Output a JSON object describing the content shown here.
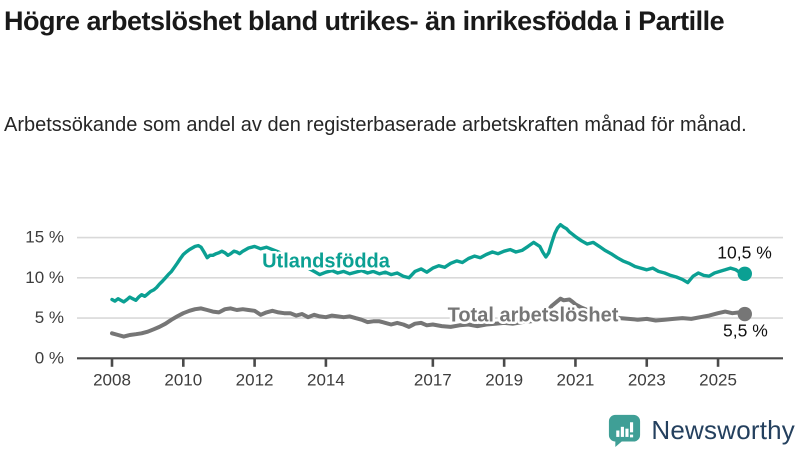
{
  "header": {
    "title": "Högre arbetslöshet bland utrikes- än inrikesfödda i Partille",
    "subtitle": "Arbetssökande som andel av den registerbaserade arbetskraften månad för månad."
  },
  "footer": {
    "brand": "Newsworthy",
    "logo_icon": "bar-chart-speech-bubble-icon",
    "brand_color": "#24405e",
    "icon_color": "#3f9f96"
  },
  "chart_data": {
    "type": "line",
    "unit": "%",
    "grid": true,
    "x_axis": {
      "ticks": [
        2008,
        2010,
        2012,
        2014,
        2017,
        2019,
        2021,
        2023,
        2025
      ],
      "tick_labels": [
        "2008",
        "2010",
        "2012",
        "2014",
        "2017",
        "2019",
        "2021",
        "2023",
        "2025"
      ],
      "range": [
        2007.0,
        2026.8
      ]
    },
    "y_axis": {
      "ticks": [
        0,
        5,
        10,
        15
      ],
      "tick_labels": [
        "0 %",
        "5 %",
        "10 %",
        "15 %"
      ],
      "gridlines": [
        5,
        10,
        15
      ],
      "range": [
        0,
        17.5
      ]
    },
    "colors": {
      "grid": "#d9d9d9",
      "axis": "#4a4a4a",
      "tick_text": "#3d3d3d",
      "value_text": "#111111"
    },
    "series": [
      {
        "name": "Utlandsfödda",
        "color": "#0ba093",
        "end_label": "10,5 %",
        "end_value": 10.5,
        "points": [
          [
            2008.0,
            7.3
          ],
          [
            2008.08,
            7.1
          ],
          [
            2008.17,
            7.4
          ],
          [
            2008.25,
            7.2
          ],
          [
            2008.33,
            7.0
          ],
          [
            2008.42,
            7.3
          ],
          [
            2008.5,
            7.6
          ],
          [
            2008.58,
            7.4
          ],
          [
            2008.67,
            7.2
          ],
          [
            2008.75,
            7.6
          ],
          [
            2008.83,
            7.9
          ],
          [
            2008.92,
            7.7
          ],
          [
            2009.0,
            8.0
          ],
          [
            2009.08,
            8.3
          ],
          [
            2009.17,
            8.5
          ],
          [
            2009.25,
            8.8
          ],
          [
            2009.33,
            9.2
          ],
          [
            2009.42,
            9.6
          ],
          [
            2009.5,
            10.0
          ],
          [
            2009.58,
            10.4
          ],
          [
            2009.67,
            10.8
          ],
          [
            2009.75,
            11.3
          ],
          [
            2009.83,
            11.8
          ],
          [
            2009.92,
            12.4
          ],
          [
            2010.0,
            12.9
          ],
          [
            2010.08,
            13.2
          ],
          [
            2010.17,
            13.5
          ],
          [
            2010.25,
            13.7
          ],
          [
            2010.33,
            13.9
          ],
          [
            2010.42,
            14.0
          ],
          [
            2010.5,
            13.8
          ],
          [
            2010.58,
            13.2
          ],
          [
            2010.67,
            12.5
          ],
          [
            2010.75,
            12.8
          ],
          [
            2010.83,
            12.8
          ],
          [
            2010.92,
            13.0
          ],
          [
            2011.0,
            13.1
          ],
          [
            2011.08,
            13.3
          ],
          [
            2011.17,
            13.1
          ],
          [
            2011.25,
            12.8
          ],
          [
            2011.33,
            13.0
          ],
          [
            2011.42,
            13.3
          ],
          [
            2011.5,
            13.2
          ],
          [
            2011.58,
            13.0
          ],
          [
            2011.67,
            13.3
          ],
          [
            2011.75,
            13.5
          ],
          [
            2011.83,
            13.7
          ],
          [
            2011.92,
            13.8
          ],
          [
            2012.0,
            13.9
          ],
          [
            2012.17,
            13.6
          ],
          [
            2012.33,
            13.8
          ],
          [
            2012.5,
            13.5
          ],
          [
            2012.67,
            13.2
          ],
          [
            2012.83,
            12.8
          ],
          [
            2013.0,
            12.4
          ],
          [
            2013.25,
            11.8
          ],
          [
            2013.5,
            11.2
          ],
          [
            2013.67,
            10.8
          ],
          [
            2013.83,
            10.4
          ],
          [
            2014.0,
            10.7
          ],
          [
            2014.17,
            10.9
          ],
          [
            2014.33,
            10.6
          ],
          [
            2014.5,
            10.8
          ],
          [
            2014.67,
            10.5
          ],
          [
            2014.83,
            10.7
          ],
          [
            2015.0,
            10.9
          ],
          [
            2015.17,
            10.6
          ],
          [
            2015.33,
            10.8
          ],
          [
            2015.5,
            10.5
          ],
          [
            2015.67,
            10.7
          ],
          [
            2015.83,
            10.4
          ],
          [
            2016.0,
            10.6
          ],
          [
            2016.17,
            10.2
          ],
          [
            2016.33,
            10.0
          ],
          [
            2016.5,
            10.8
          ],
          [
            2016.67,
            11.1
          ],
          [
            2016.83,
            10.7
          ],
          [
            2017.0,
            11.2
          ],
          [
            2017.17,
            11.5
          ],
          [
            2017.33,
            11.3
          ],
          [
            2017.5,
            11.8
          ],
          [
            2017.67,
            12.1
          ],
          [
            2017.83,
            11.9
          ],
          [
            2018.0,
            12.4
          ],
          [
            2018.17,
            12.7
          ],
          [
            2018.33,
            12.5
          ],
          [
            2018.5,
            12.9
          ],
          [
            2018.67,
            13.2
          ],
          [
            2018.83,
            13.0
          ],
          [
            2019.0,
            13.3
          ],
          [
            2019.17,
            13.5
          ],
          [
            2019.33,
            13.2
          ],
          [
            2019.5,
            13.4
          ],
          [
            2019.67,
            13.9
          ],
          [
            2019.83,
            14.4
          ],
          [
            2020.0,
            13.9
          ],
          [
            2020.08,
            13.2
          ],
          [
            2020.17,
            12.6
          ],
          [
            2020.25,
            13.1
          ],
          [
            2020.33,
            14.3
          ],
          [
            2020.42,
            15.5
          ],
          [
            2020.5,
            16.2
          ],
          [
            2020.58,
            16.6
          ],
          [
            2020.67,
            16.3
          ],
          [
            2020.75,
            16.1
          ],
          [
            2020.83,
            15.7
          ],
          [
            2020.92,
            15.4
          ],
          [
            2021.0,
            15.1
          ],
          [
            2021.17,
            14.6
          ],
          [
            2021.33,
            14.2
          ],
          [
            2021.5,
            14.4
          ],
          [
            2021.67,
            13.9
          ],
          [
            2021.83,
            13.4
          ],
          [
            2022.0,
            13.0
          ],
          [
            2022.17,
            12.5
          ],
          [
            2022.33,
            12.1
          ],
          [
            2022.5,
            11.8
          ],
          [
            2022.67,
            11.4
          ],
          [
            2022.83,
            11.2
          ],
          [
            2023.0,
            11.0
          ],
          [
            2023.17,
            11.2
          ],
          [
            2023.33,
            10.8
          ],
          [
            2023.5,
            10.6
          ],
          [
            2023.67,
            10.3
          ],
          [
            2023.83,
            10.1
          ],
          [
            2024.0,
            9.8
          ],
          [
            2024.15,
            9.4
          ],
          [
            2024.3,
            10.2
          ],
          [
            2024.45,
            10.6
          ],
          [
            2024.6,
            10.3
          ],
          [
            2024.75,
            10.2
          ],
          [
            2024.9,
            10.6
          ],
          [
            2025.05,
            10.8
          ],
          [
            2025.2,
            11.0
          ],
          [
            2025.35,
            11.2
          ],
          [
            2025.5,
            11.0
          ],
          [
            2025.6,
            10.7
          ],
          [
            2025.75,
            10.5
          ]
        ]
      },
      {
        "name": "Total arbetslöshet",
        "color": "#767676",
        "end_label": "5,5 %",
        "end_value": 5.5,
        "points": [
          [
            2008.0,
            3.1
          ],
          [
            2008.17,
            2.9
          ],
          [
            2008.33,
            2.7
          ],
          [
            2008.5,
            2.9
          ],
          [
            2008.67,
            3.0
          ],
          [
            2008.83,
            3.1
          ],
          [
            2009.0,
            3.3
          ],
          [
            2009.17,
            3.6
          ],
          [
            2009.33,
            3.9
          ],
          [
            2009.5,
            4.3
          ],
          [
            2009.67,
            4.8
          ],
          [
            2009.83,
            5.2
          ],
          [
            2010.0,
            5.6
          ],
          [
            2010.17,
            5.9
          ],
          [
            2010.33,
            6.1
          ],
          [
            2010.5,
            6.2
          ],
          [
            2010.67,
            6.0
          ],
          [
            2010.83,
            5.8
          ],
          [
            2011.0,
            5.7
          ],
          [
            2011.17,
            6.1
          ],
          [
            2011.33,
            6.2
          ],
          [
            2011.5,
            6.0
          ],
          [
            2011.67,
            6.1
          ],
          [
            2011.83,
            6.0
          ],
          [
            2012.0,
            5.9
          ],
          [
            2012.17,
            5.4
          ],
          [
            2012.33,
            5.7
          ],
          [
            2012.5,
            5.9
          ],
          [
            2012.67,
            5.7
          ],
          [
            2012.83,
            5.6
          ],
          [
            2013.0,
            5.6
          ],
          [
            2013.17,
            5.3
          ],
          [
            2013.33,
            5.5
          ],
          [
            2013.5,
            5.1
          ],
          [
            2013.67,
            5.4
          ],
          [
            2013.83,
            5.2
          ],
          [
            2014.0,
            5.1
          ],
          [
            2014.17,
            5.3
          ],
          [
            2014.33,
            5.2
          ],
          [
            2014.5,
            5.1
          ],
          [
            2014.67,
            5.2
          ],
          [
            2014.83,
            5.0
          ],
          [
            2015.0,
            4.8
          ],
          [
            2015.17,
            4.5
          ],
          [
            2015.33,
            4.6
          ],
          [
            2015.5,
            4.6
          ],
          [
            2015.67,
            4.4
          ],
          [
            2015.83,
            4.2
          ],
          [
            2016.0,
            4.4
          ],
          [
            2016.17,
            4.2
          ],
          [
            2016.33,
            3.9
          ],
          [
            2016.5,
            4.3
          ],
          [
            2016.67,
            4.4
          ],
          [
            2016.83,
            4.1
          ],
          [
            2017.0,
            4.2
          ],
          [
            2017.25,
            4.0
          ],
          [
            2017.5,
            3.9
          ],
          [
            2017.75,
            4.1
          ],
          [
            2018.0,
            4.2
          ],
          [
            2018.25,
            4.0
          ],
          [
            2018.5,
            4.2
          ],
          [
            2018.75,
            4.3
          ],
          [
            2019.0,
            4.4
          ],
          [
            2019.25,
            4.3
          ],
          [
            2019.5,
            4.5
          ],
          [
            2019.75,
            4.6
          ],
          [
            2020.0,
            4.8
          ],
          [
            2020.17,
            5.6
          ],
          [
            2020.33,
            6.5
          ],
          [
            2020.5,
            7.1
          ],
          [
            2020.58,
            7.4
          ],
          [
            2020.67,
            7.2
          ],
          [
            2020.83,
            7.3
          ],
          [
            2020.92,
            7.0
          ],
          [
            2021.0,
            6.7
          ],
          [
            2021.17,
            6.3
          ],
          [
            2021.33,
            6.0
          ],
          [
            2021.5,
            5.8
          ],
          [
            2021.67,
            5.6
          ],
          [
            2021.83,
            5.4
          ],
          [
            2022.0,
            5.2
          ],
          [
            2022.25,
            5.0
          ],
          [
            2022.5,
            4.9
          ],
          [
            2022.75,
            4.8
          ],
          [
            2023.0,
            4.9
          ],
          [
            2023.25,
            4.7
          ],
          [
            2023.5,
            4.8
          ],
          [
            2023.75,
            4.9
          ],
          [
            2024.0,
            5.0
          ],
          [
            2024.25,
            4.9
          ],
          [
            2024.5,
            5.1
          ],
          [
            2024.75,
            5.3
          ],
          [
            2025.0,
            5.6
          ],
          [
            2025.2,
            5.8
          ],
          [
            2025.4,
            5.6
          ],
          [
            2025.6,
            5.7
          ],
          [
            2025.75,
            5.5
          ]
        ]
      }
    ],
    "legend_position": "inline-labels"
  }
}
